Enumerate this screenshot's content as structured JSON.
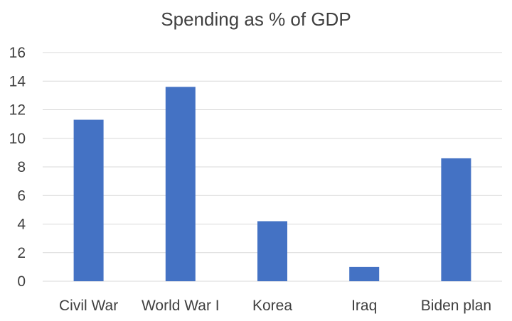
{
  "chart_data": {
    "type": "bar",
    "title": "Spending as % of GDP",
    "categories": [
      "Civil War",
      "World War I",
      "Korea",
      "Iraq",
      "Biden plan"
    ],
    "values": [
      11.3,
      13.6,
      4.2,
      1.0,
      8.6
    ],
    "ylim": [
      0,
      16
    ],
    "yticks": [
      0,
      2,
      4,
      6,
      8,
      10,
      12,
      14,
      16
    ],
    "grid": true,
    "legend": "none",
    "bar_color": "#4472c4"
  }
}
